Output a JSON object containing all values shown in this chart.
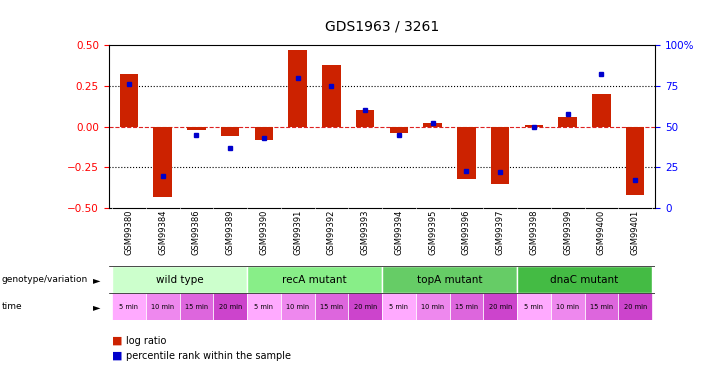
{
  "title": "GDS1963 / 3261",
  "samples": [
    "GSM99380",
    "GSM99384",
    "GSM99386",
    "GSM99389",
    "GSM99390",
    "GSM99391",
    "GSM99392",
    "GSM99393",
    "GSM99394",
    "GSM99395",
    "GSM99396",
    "GSM99397",
    "GSM99398",
    "GSM99399",
    "GSM99400",
    "GSM99401"
  ],
  "log_ratio": [
    0.32,
    -0.43,
    -0.02,
    -0.06,
    -0.08,
    0.47,
    0.38,
    0.1,
    -0.04,
    0.02,
    -0.32,
    -0.35,
    0.01,
    0.06,
    0.2,
    -0.42
  ],
  "pct_rank": [
    76,
    20,
    45,
    37,
    43,
    80,
    75,
    60,
    45,
    52,
    23,
    22,
    50,
    58,
    82,
    17
  ],
  "groups": [
    {
      "label": "wild type",
      "start": 0,
      "end": 4,
      "color": "#ccffcc"
    },
    {
      "label": "recA mutant",
      "start": 4,
      "end": 8,
      "color": "#88ee88"
    },
    {
      "label": "topA mutant",
      "start": 8,
      "end": 12,
      "color": "#66cc66"
    },
    {
      "label": "dnaC mutant",
      "start": 12,
      "end": 16,
      "color": "#44bb44"
    }
  ],
  "time_labels": [
    "5 min",
    "10 min",
    "15 min",
    "20 min",
    "5 min",
    "10 min",
    "15 min",
    "20 min",
    "5 min",
    "10 min",
    "15 min",
    "20 min",
    "5 min",
    "10 min",
    "15 min",
    "20 min"
  ],
  "time_colors_cycle": [
    "#ffaaff",
    "#ee88ee",
    "#dd66dd",
    "#cc44cc"
  ],
  "bar_color": "#cc2200",
  "dot_color": "#0000cc",
  "ylim_left": [
    -0.5,
    0.5
  ],
  "ylim_right": [
    0,
    100
  ],
  "yticks_left": [
    -0.5,
    -0.25,
    0.0,
    0.25,
    0.5
  ],
  "yticks_right": [
    0,
    25,
    50,
    75,
    100
  ],
  "hlines_dotted": [
    0.25,
    -0.25
  ],
  "zero_line_color": "#dd2222",
  "background_color": "#ffffff",
  "label_bg_color": "#cccccc"
}
